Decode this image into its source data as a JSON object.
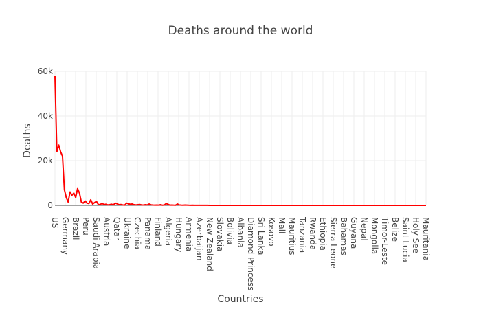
{
  "chart_data": {
    "type": "line",
    "title": "Deaths around the world",
    "xlabel": "Countries",
    "ylabel": "Deaths",
    "ylim": [
      0,
      60000
    ],
    "y_ticks": [
      0,
      20000,
      40000,
      60000
    ],
    "y_tick_labels": [
      "0",
      "20k",
      "40k",
      "60k"
    ],
    "x_tick_labels": [
      "US",
      "Germany",
      "Brazil",
      "Peru",
      "Saudi Arabia",
      "Austria",
      "Qatar",
      "Ukraine",
      "Czechia",
      "Panama",
      "Finland",
      "Algeria",
      "Hungary",
      "Armenia",
      "Azerbaijan",
      "New Zealand",
      "Slovakia",
      "Bolivia",
      "Albania",
      "Diamond Princess",
      "Sri Lanka",
      "Kosovo",
      "Mali",
      "Mauritius",
      "Tanzania",
      "Rwanda",
      "Ethiopia",
      "Sierra Leone",
      "Bahamas",
      "Guyana",
      "Nepal",
      "Mongolia",
      "Timor-Leste",
      "Belize",
      "Saint Lucia",
      "Holy See",
      "Mauritania"
    ],
    "grid": true,
    "legend": "none",
    "series": [
      {
        "color": "#ff0000",
        "values": [
          58000,
          24000,
          27000,
          24000,
          22000,
          7000,
          3500,
          1500,
          6000,
          4500,
          5500,
          3500,
          7500,
          5500,
          1500,
          1000,
          2000,
          1000,
          800,
          2500,
          600,
          1200,
          1800,
          400,
          300,
          1000,
          300,
          500,
          200,
          300,
          500,
          200,
          1000,
          700,
          300,
          400,
          200,
          100,
          1000,
          700,
          500,
          600,
          300,
          200,
          300,
          400,
          200,
          150,
          300,
          200,
          600,
          250,
          150,
          100,
          150,
          100,
          300,
          80,
          150,
          800,
          500,
          100,
          150,
          100,
          80,
          600,
          200,
          100,
          80,
          150,
          100,
          60,
          50,
          80,
          40,
          50,
          40,
          30,
          50,
          30,
          30,
          30,
          20,
          20,
          20,
          20,
          20,
          20,
          20,
          20,
          20,
          20,
          20,
          20,
          20,
          20,
          20,
          20,
          20,
          20,
          20,
          20,
          20,
          20,
          20,
          20,
          20,
          20,
          20,
          20,
          20,
          20,
          20,
          20,
          20,
          20,
          20,
          20,
          20,
          20,
          20,
          20,
          20,
          20,
          20,
          20,
          20,
          20,
          20,
          20,
          20,
          20,
          20,
          20,
          20,
          20,
          20,
          20,
          20,
          20,
          20,
          20,
          20,
          20,
          20,
          20,
          20,
          20,
          20,
          20,
          20,
          20,
          20,
          20,
          20,
          20,
          20,
          20,
          20,
          20,
          20,
          20,
          20,
          20,
          20,
          20,
          20,
          20,
          20,
          20,
          20,
          20,
          20,
          20,
          20,
          20,
          20,
          20,
          20,
          20,
          20,
          20,
          20,
          20,
          20,
          20,
          20,
          20,
          20,
          20,
          20,
          20,
          20,
          20,
          20,
          20,
          20,
          20
        ]
      }
    ]
  }
}
